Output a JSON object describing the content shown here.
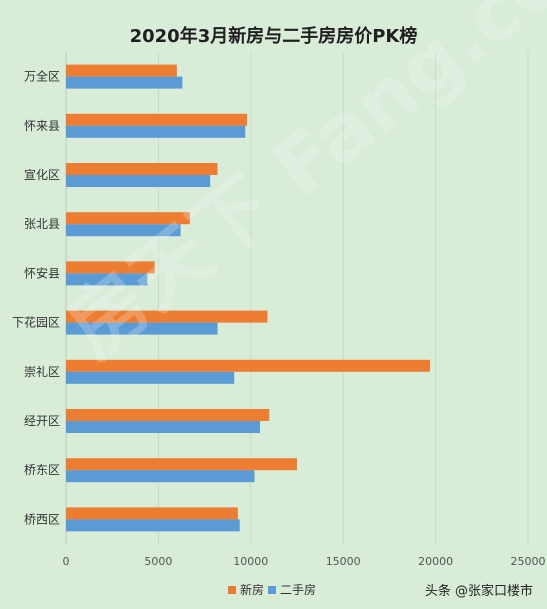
{
  "chart_data": {
    "type": "bar",
    "orientation": "horizontal",
    "title": "2020年3月新房与二手房房价PK榜",
    "categories": [
      "万全区",
      "怀来县",
      "宣化区",
      "张北县",
      "怀安县",
      "下花园区",
      "崇礼区",
      "经开区",
      "桥东区",
      "桥西区"
    ],
    "series": [
      {
        "name": "新房",
        "color": "#ed7d31",
        "values": [
          6000,
          9800,
          8200,
          6700,
          4800,
          10900,
          19700,
          11000,
          12500,
          9300
        ]
      },
      {
        "name": "二手房",
        "color": "#5b9bd5",
        "values": [
          6300,
          9700,
          7800,
          6200,
          4400,
          8200,
          9100,
          10500,
          10200,
          9400
        ]
      }
    ],
    "xlim": [
      0,
      25000
    ],
    "xticks": [
      0,
      5000,
      10000,
      15000,
      20000,
      25000
    ],
    "grid": true,
    "legend": "bottom"
  },
  "watermark": "房天下 Fang.com",
  "footer": "头条 @张家口楼市"
}
